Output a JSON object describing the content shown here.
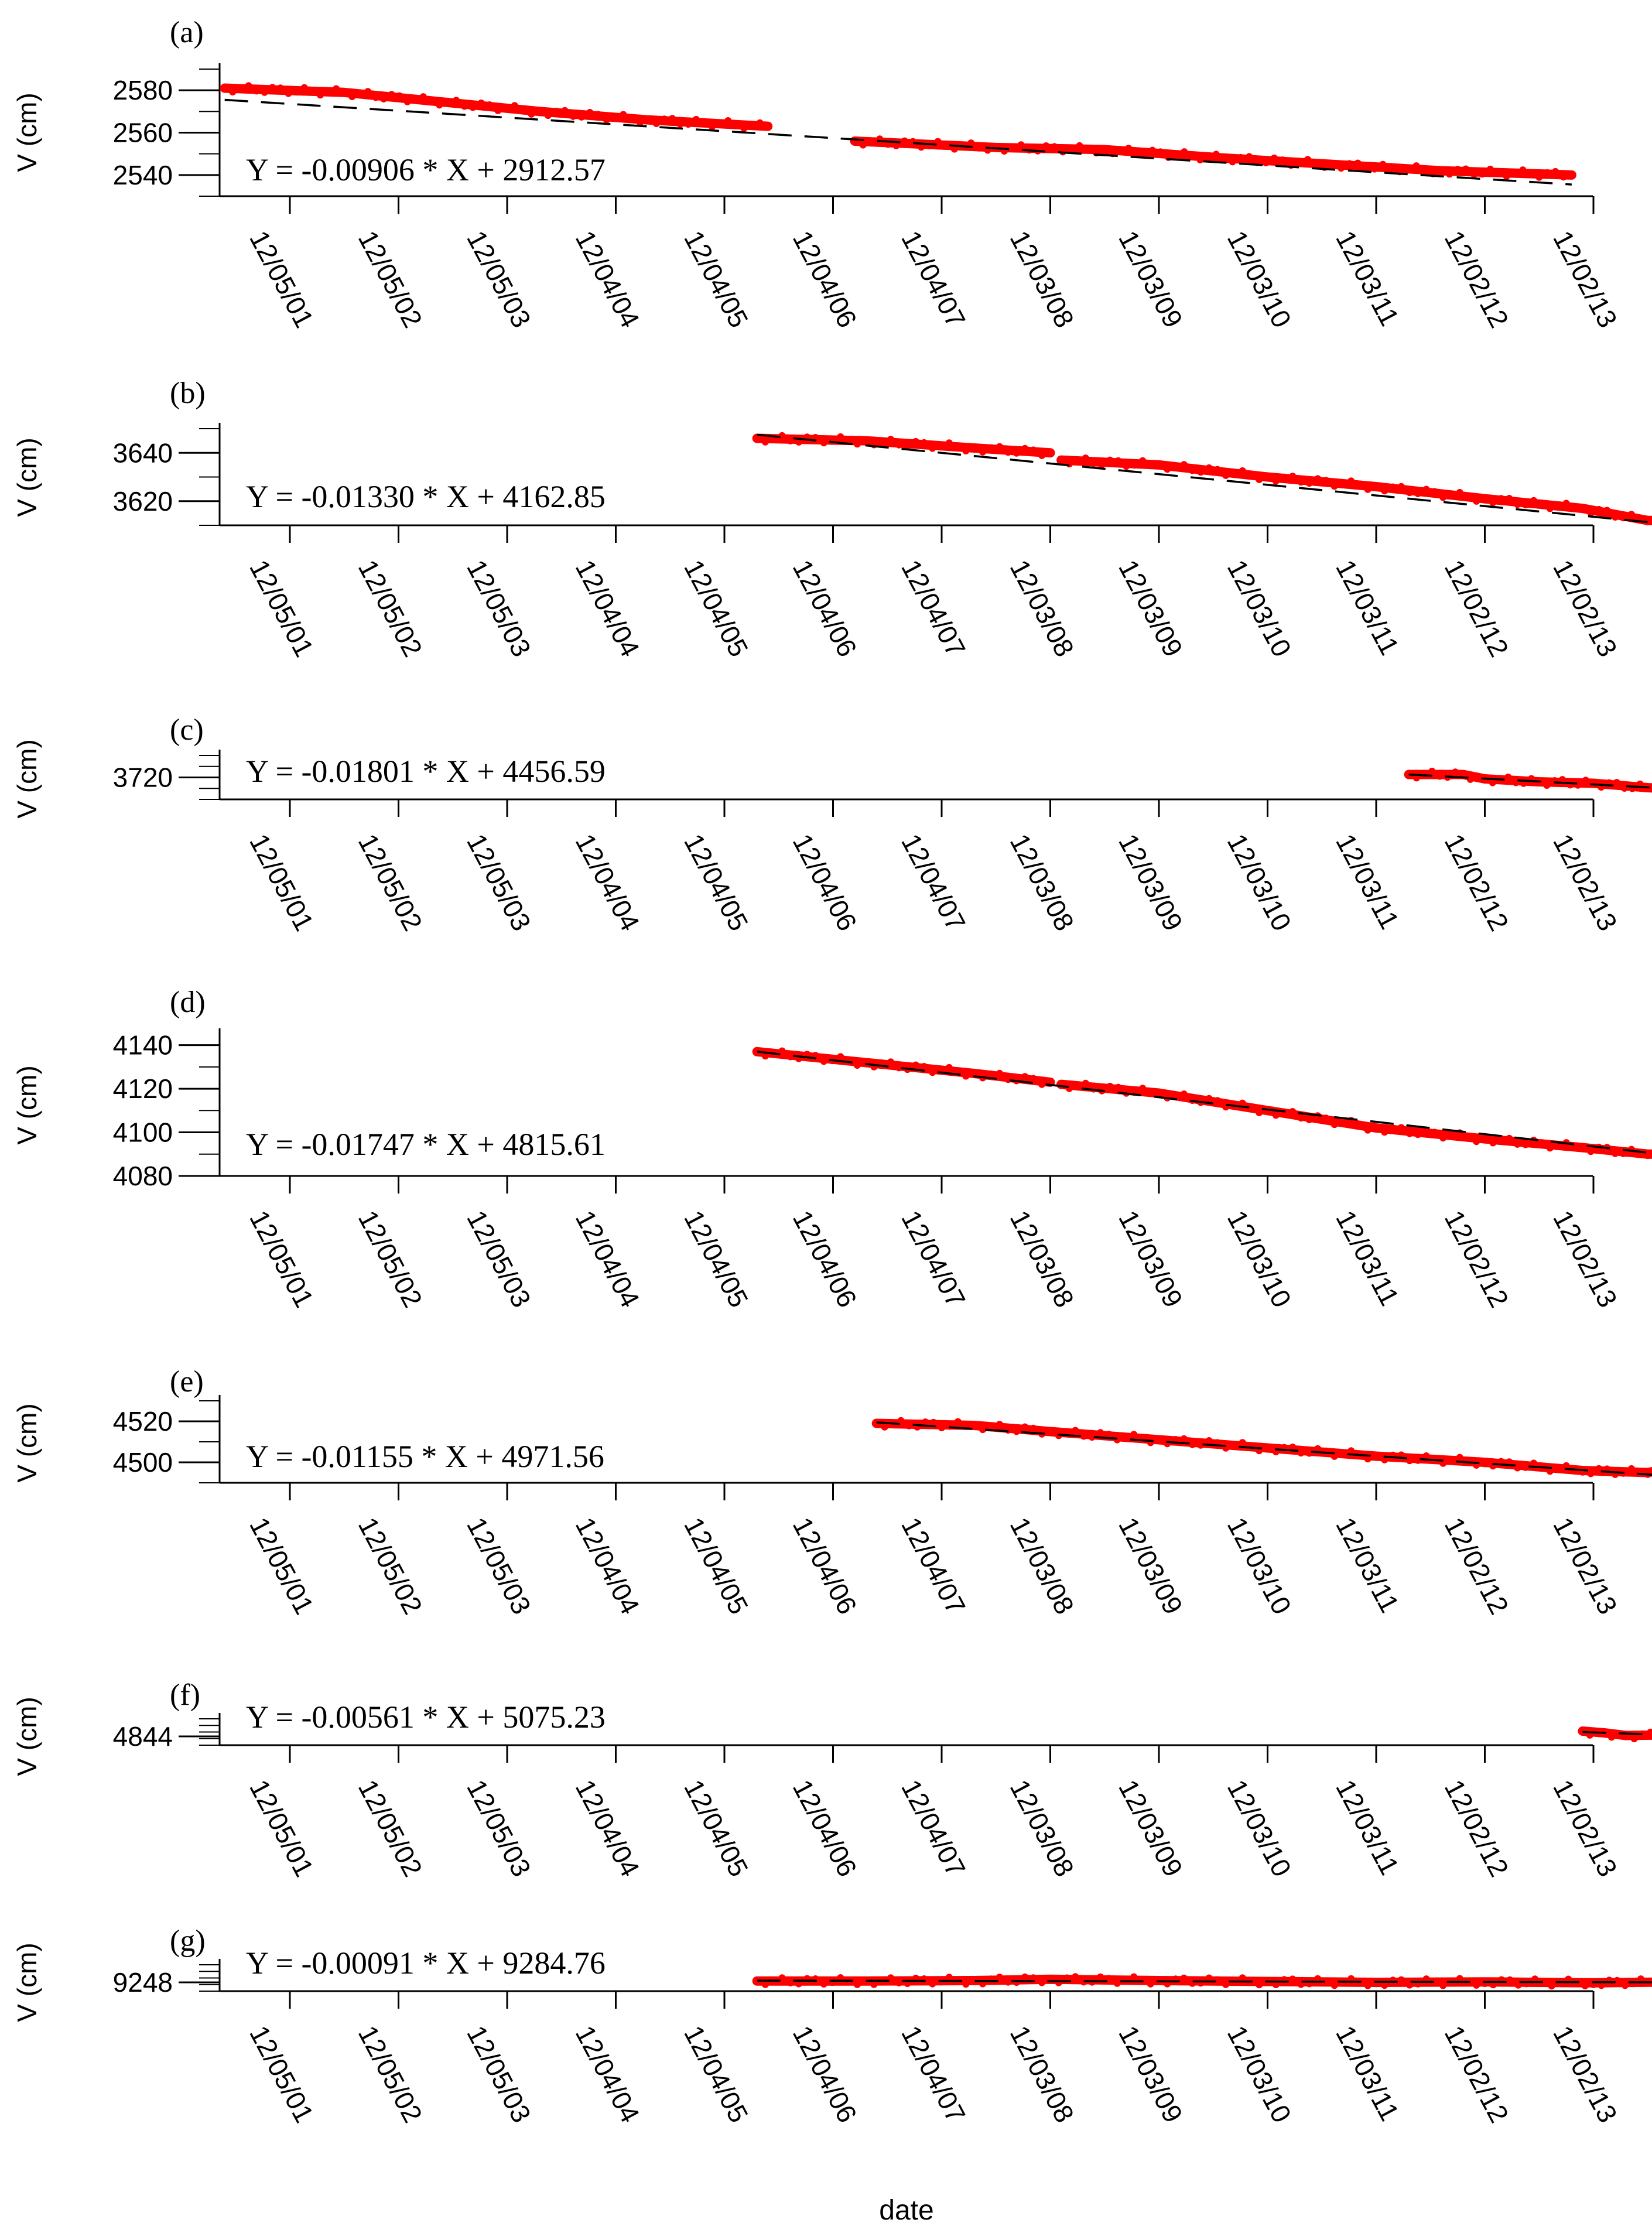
{
  "chart_data": [
    {
      "panel": "(a)",
      "type": "scatter",
      "ylabel": "V (cm)",
      "yticks": [
        2540,
        2560,
        2580
      ],
      "ylim": [
        2530,
        2590
      ],
      "equation": "Y = -0.00906 * X + 2912.57",
      "x_tick_labels": [
        "12/05/01",
        "12/05/02",
        "12/05/03",
        "12/04/04",
        "12/04/05",
        "12/04/06",
        "12/04/07",
        "12/03/08",
        "12/03/09",
        "12/03/10",
        "12/03/11",
        "12/02/12",
        "12/02/13"
      ],
      "series": [
        {
          "name": "",
          "color": "#ff0000",
          "segments": [
            [
              [
                -0.6,
                2581
              ],
              [
                0.5,
                2579
              ],
              [
                1.3,
                2575
              ],
              [
                2.3,
                2570
              ],
              [
                3.3,
                2566
              ],
              [
                4.4,
                2563
              ]
            ],
            [
              [
                5.2,
                2556
              ],
              [
                6.5,
                2553
              ],
              [
                7.5,
                2552
              ],
              [
                8.6,
                2548
              ],
              [
                9.6,
                2545
              ],
              [
                10.6,
                2542
              ],
              [
                11.8,
                2540
              ]
            ]
          ]
        }
      ],
      "fit": {
        "name": "",
        "x": [
          -0.6,
          11.8
        ],
        "y": [
          2575.5,
          2535.5
        ]
      }
    },
    {
      "panel": "(b)",
      "type": "scatter",
      "ylabel": "V (cm)",
      "yticks": [
        3620,
        3640
      ],
      "ylim": [
        3610,
        3650
      ],
      "equation": "Y = -0.01330 * X + 4162.85",
      "x_tick_labels": [
        "12/05/01",
        "12/05/02",
        "12/05/03",
        "12/04/04",
        "12/04/05",
        "12/04/06",
        "12/04/07",
        "12/03/08",
        "12/03/09",
        "12/03/10",
        "12/03/11",
        "12/02/12",
        "12/02/13"
      ],
      "series": [
        {
          "name": "",
          "color": "#ff0000",
          "segments": [
            [
              [
                4.3,
                3646
              ],
              [
                5.3,
                3645
              ],
              [
                6.3,
                3642
              ],
              [
                7.0,
                3640
              ]
            ],
            [
              [
                7.1,
                3637
              ],
              [
                8.0,
                3635
              ],
              [
                9.0,
                3630
              ],
              [
                10.0,
                3626
              ],
              [
                11.0,
                3621
              ],
              [
                11.9,
                3617
              ],
              [
                12.5,
                3612
              ],
              [
                12.8,
                3612
              ]
            ]
          ]
        }
      ],
      "fit": {
        "name": "",
        "x": [
          4.3,
          12.8
        ],
        "y": [
          3647.5,
          3610
        ]
      }
    },
    {
      "panel": "(c)",
      "type": "scatter",
      "ylabel": "V (cm)",
      "yticks": [
        3720
      ],
      "ylim": [
        3705,
        3735
      ],
      "equation": "Y = -0.01801 * X + 4456.59",
      "x_tick_labels": [
        "12/05/01",
        "12/05/02",
        "12/05/03",
        "12/04/04",
        "12/04/05",
        "12/04/06",
        "12/04/07",
        "12/03/08",
        "12/03/09",
        "12/03/10",
        "12/03/11",
        "12/02/12",
        "12/02/13"
      ],
      "series": [
        {
          "name": "",
          "color": "#ff0000",
          "segments": [
            [
              [
                10.3,
                3722
              ],
              [
                10.8,
                3722
              ],
              [
                11.0,
                3719
              ],
              [
                11.5,
                3717
              ],
              [
                12.0,
                3716
              ],
              [
                12.5,
                3713
              ],
              [
                12.8,
                3712
              ]
            ]
          ]
        }
      ],
      "fit": {
        "name": "",
        "x": [
          10.3,
          12.8
        ],
        "y": [
          3722,
          3712
        ]
      }
    },
    {
      "panel": "(d)",
      "type": "scatter",
      "ylabel": "V (cm)",
      "yticks": [
        4080,
        4100,
        4120,
        4140
      ],
      "ylim": [
        4080,
        4145
      ],
      "equation": "Y = -0.01747 * X + 4815.61",
      "x_tick_labels": [
        "12/05/01",
        "12/05/02",
        "12/05/03",
        "12/04/04",
        "12/04/05",
        "12/04/06",
        "12/04/07",
        "12/03/08",
        "12/03/09",
        "12/03/10",
        "12/03/11",
        "12/02/12",
        "12/02/13"
      ],
      "series": [
        {
          "name": "",
          "color": "#ff0000",
          "segments": [
            [
              [
                4.3,
                4137
              ],
              [
                5.3,
                4132
              ],
              [
                6.3,
                4127
              ],
              [
                7.0,
                4123
              ]
            ],
            [
              [
                7.1,
                4122
              ],
              [
                8.0,
                4118
              ],
              [
                9.0,
                4110
              ],
              [
                10.0,
                4102
              ],
              [
                11.0,
                4097
              ],
              [
                11.9,
                4093
              ],
              [
                12.5,
                4090
              ],
              [
                12.8,
                4090
              ]
            ]
          ]
        }
      ],
      "fit": {
        "name": "",
        "x": [
          4.3,
          12.8
        ],
        "y": [
          4137,
          4089
        ]
      }
    },
    {
      "panel": "(e)",
      "type": "scatter",
      "ylabel": "V (cm)",
      "yticks": [
        4500,
        4520
      ],
      "ylim": [
        4490,
        4530
      ],
      "equation": "Y = -0.01155 * X + 4971.56",
      "x_tick_labels": [
        "12/05/01",
        "12/05/02",
        "12/05/03",
        "12/04/04",
        "12/04/05",
        "12/04/06",
        "12/04/07",
        "12/03/08",
        "12/03/09",
        "12/03/10",
        "12/03/11",
        "12/02/12",
        "12/02/13"
      ],
      "series": [
        {
          "name": "",
          "color": "#ff0000",
          "segments": [
            [
              [
                5.4,
                4519
              ],
              [
                6.3,
                4518
              ],
              [
                7.0,
                4515
              ],
              [
                8.0,
                4511
              ],
              [
                9.0,
                4507
              ],
              [
                10.0,
                4503
              ],
              [
                11.0,
                4500
              ],
              [
                11.9,
                4496
              ],
              [
                12.5,
                4495
              ],
              [
                12.8,
                4498
              ]
            ]
          ]
        }
      ],
      "fit": {
        "name": "",
        "x": [
          5.4,
          12.8
        ],
        "y": [
          4519.5,
          4493
        ]
      }
    },
    {
      "panel": "(f)",
      "type": "scatter",
      "ylabel": "V (cm)",
      "yticks": [
        4844
      ],
      "ylim": [
        4842,
        4848
      ],
      "equation": "Y = -0.00561 * X + 5075.23",
      "x_tick_labels": [
        "12/05/01",
        "12/05/02",
        "12/05/03",
        "12/04/04",
        "12/04/05",
        "12/04/06",
        "12/04/07",
        "12/03/08",
        "12/03/09",
        "12/03/10",
        "12/03/11",
        "12/02/12",
        "12/02/13"
      ],
      "series": [
        {
          "name": "",
          "color": "#ff0000",
          "segments": [
            [
              [
                11.9,
                4845.2
              ],
              [
                12.1,
                4844.8
              ],
              [
                12.3,
                4844.2
              ],
              [
                12.6,
                4844.3
              ],
              [
                12.8,
                4844.5
              ]
            ]
          ]
        }
      ],
      "fit": {
        "name": "",
        "x": [
          11.9,
          12.8
        ],
        "y": [
          4845,
          4844.2
        ]
      }
    },
    {
      "panel": "(g)",
      "type": "scatter",
      "ylabel": "V (cm)",
      "yticks": [
        9248
      ],
      "ylim": [
        9246,
        9252
      ],
      "equation": "Y = -0.00091 * X + 9284.76",
      "x_tick_labels": [
        "12/05/01",
        "12/05/02",
        "12/05/03",
        "12/04/04",
        "12/04/05",
        "12/04/06",
        "12/04/07",
        "12/03/08",
        "12/03/09",
        "12/03/10",
        "12/03/11",
        "12/02/12",
        "12/02/13"
      ],
      "series": [
        {
          "name": "",
          "color": "#ff0000",
          "segments": [
            [
              [
                4.3,
                9248.3
              ],
              [
                5.3,
                9248.3
              ],
              [
                6.3,
                9248.4
              ],
              [
                7.0,
                9248.7
              ],
              [
                8.0,
                9248.4
              ],
              [
                9.0,
                9248.2
              ],
              [
                10.0,
                9248.0
              ],
              [
                11.0,
                9248.1
              ],
              [
                12.0,
                9247.9
              ],
              [
                12.8,
                9248.1
              ]
            ]
          ]
        }
      ],
      "fit": {
        "name": "",
        "x": [
          4.3,
          12.8
        ],
        "y": [
          9248.4,
          9248.0
        ]
      }
    }
  ],
  "xlabel": "date",
  "colors": {
    "data": "#ff0000",
    "fit": "#000000",
    "axis": "#000000"
  }
}
